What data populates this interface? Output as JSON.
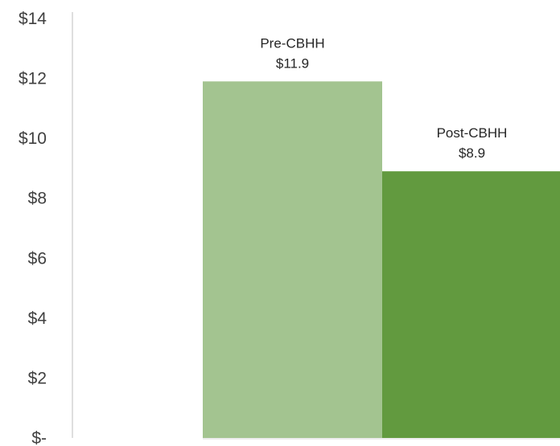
{
  "chart_data": {
    "type": "bar",
    "title": "",
    "xlabel": "",
    "ylabel": "",
    "categories": [
      "Pre-CBHH",
      "Post-CBHH"
    ],
    "values": [
      11.9,
      8.9
    ],
    "value_labels": [
      "$11.9",
      "$8.9"
    ],
    "ylim": [
      0,
      14
    ],
    "yticks": [
      0,
      2,
      4,
      6,
      8,
      10,
      12,
      14
    ],
    "ytick_labels": [
      "$-",
      "$2",
      "$4",
      "$6",
      "$8",
      "$10",
      "$12",
      "$14"
    ],
    "grid": false,
    "legend": "none",
    "colors": [
      "#a3c490",
      "#629a3f"
    ]
  }
}
